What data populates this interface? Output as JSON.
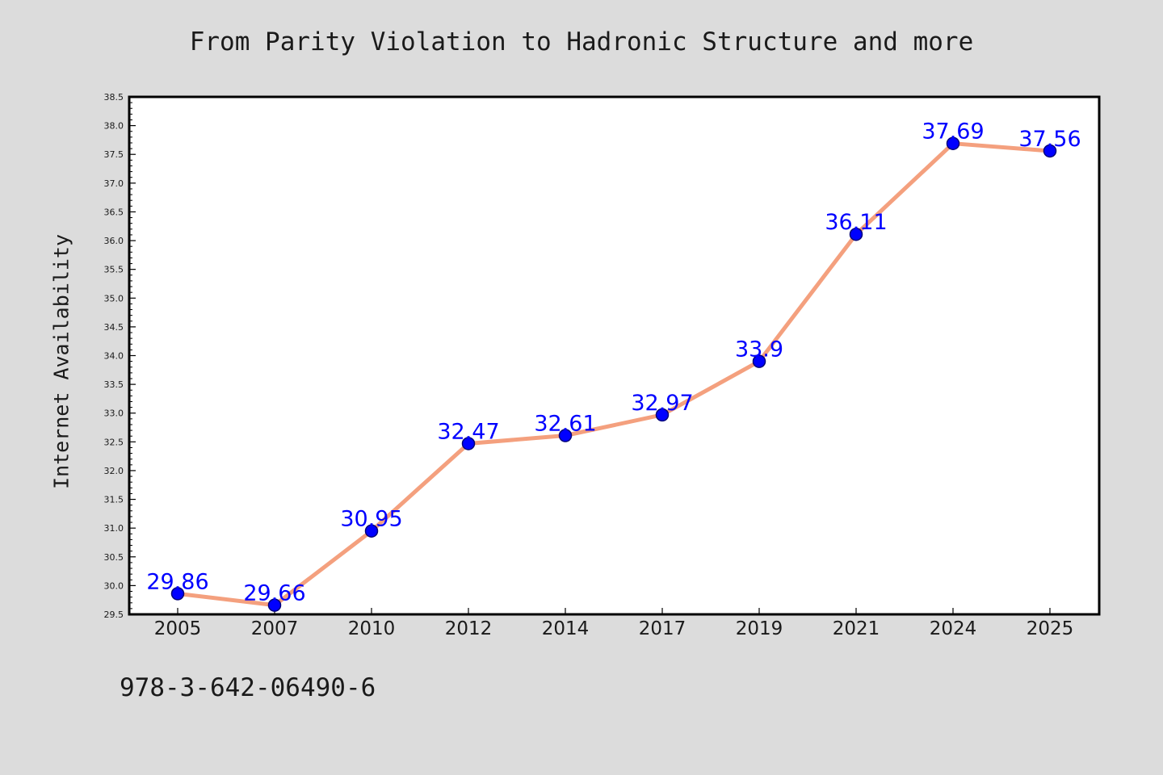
{
  "chart_data": {
    "type": "line",
    "title": "From Parity Violation to Hadronic Structure and more",
    "xlabel": "",
    "ylabel": "Internet Availability",
    "categories": [
      "2005",
      "2007",
      "2010",
      "2012",
      "2014",
      "2017",
      "2019",
      "2021",
      "2024",
      "2025"
    ],
    "series": [
      {
        "values": [
          29.86,
          29.66,
          30.95,
          32.47,
          32.61,
          32.97,
          33.9,
          36.11,
          37.69,
          37.56
        ]
      }
    ],
    "data_labels": [
      "29.86",
      "29.66",
      "30.95",
      "32.47",
      "32.61",
      "32.97",
      "33.9",
      "36.11",
      "37.69",
      "37.56"
    ],
    "ylim": [
      29.5,
      38.5
    ],
    "yticks": [
      "29.5",
      "30.0",
      "30.5",
      "31.0",
      "31.5",
      "32.0",
      "32.5",
      "33.0",
      "33.5",
      "34.0",
      "34.5",
      "35.0",
      "35.5",
      "36.0",
      "36.5",
      "37.0",
      "37.5",
      "38.0",
      "38.5"
    ],
    "grid": false,
    "legend": "none",
    "colors": {
      "line": "#f4a07e",
      "marker_fill": "#0000ff",
      "marker_edge": "#00007a",
      "data_label": "#0000ff",
      "plot_background": "#ffffff",
      "page_background": "#dcdcdc"
    }
  },
  "footnote": "978-3-642-06490-6"
}
